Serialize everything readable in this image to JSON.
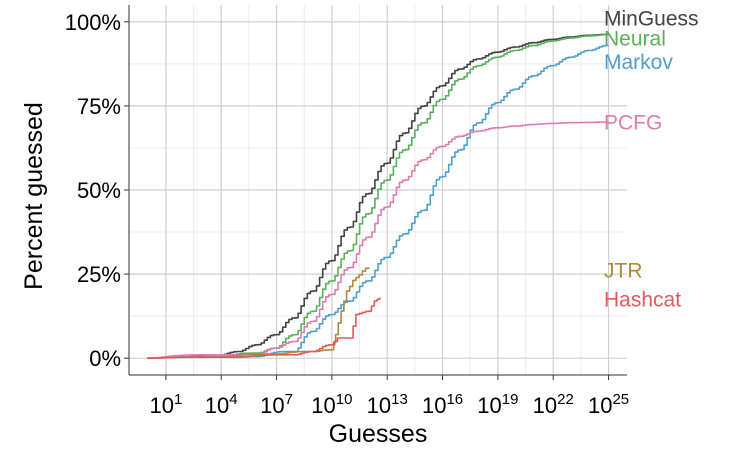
{
  "chart_data": {
    "type": "line",
    "xlabel": "Guesses",
    "ylabel": "Percent guessed",
    "x_scale": "log10",
    "xlim_exponent": [
      -1,
      26
    ],
    "ylim": [
      -5,
      105
    ],
    "grid": true,
    "legend": "direct labels at right end of each line",
    "x_ticks": [
      {
        "exp": 1,
        "base": "10",
        "sup": "1"
      },
      {
        "exp": 4,
        "base": "10",
        "sup": "4"
      },
      {
        "exp": 7,
        "base": "10",
        "sup": "7"
      },
      {
        "exp": 10,
        "base": "10",
        "sup": "10"
      },
      {
        "exp": 13,
        "base": "10",
        "sup": "13"
      },
      {
        "exp": 16,
        "base": "10",
        "sup": "16"
      },
      {
        "exp": 19,
        "base": "10",
        "sup": "19"
      },
      {
        "exp": 22,
        "base": "10",
        "sup": "22"
      },
      {
        "exp": 25,
        "base": "10",
        "sup": "25"
      }
    ],
    "y_ticks": [
      {
        "value": 0,
        "label": "0%"
      },
      {
        "value": 25,
        "label": "25%"
      },
      {
        "value": 50,
        "label": "50%"
      },
      {
        "value": 75,
        "label": "75%"
      },
      {
        "value": 100,
        "label": "100%"
      }
    ],
    "series": [
      {
        "name": "MinGuess",
        "color": "#424242",
        "label_y": 101,
        "points": [
          [
            0,
            0
          ],
          [
            2,
            0.3
          ],
          [
            4,
            1
          ],
          [
            5,
            2
          ],
          [
            6,
            4
          ],
          [
            7,
            7
          ],
          [
            8,
            12
          ],
          [
            9,
            20
          ],
          [
            10,
            29
          ],
          [
            11,
            39
          ],
          [
            12,
            49
          ],
          [
            13,
            58
          ],
          [
            14,
            67
          ],
          [
            15,
            75
          ],
          [
            16,
            81
          ],
          [
            17,
            86
          ],
          [
            18,
            89
          ],
          [
            19,
            91
          ],
          [
            20,
            92.5
          ],
          [
            21,
            93.8
          ],
          [
            22,
            94.8
          ],
          [
            23,
            95.5
          ],
          [
            24,
            96
          ],
          [
            25,
            96.3
          ]
        ]
      },
      {
        "name": "Neural",
        "color": "#5aaf5a",
        "label_y": 95,
        "points": [
          [
            0,
            0
          ],
          [
            4,
            0.3
          ],
          [
            6,
            1.5
          ],
          [
            7,
            3
          ],
          [
            8,
            7
          ],
          [
            9,
            14
          ],
          [
            10,
            23
          ],
          [
            11,
            32
          ],
          [
            12,
            43
          ],
          [
            13,
            53
          ],
          [
            14,
            62
          ],
          [
            15,
            70
          ],
          [
            16,
            77
          ],
          [
            17,
            83
          ],
          [
            18,
            87
          ],
          [
            19,
            89.5
          ],
          [
            20,
            91.5
          ],
          [
            21,
            93
          ],
          [
            22,
            94.3
          ],
          [
            23,
            95.2
          ],
          [
            24,
            95.8
          ],
          [
            25,
            96.2
          ]
        ]
      },
      {
        "name": "Markov",
        "color": "#4f9fcf",
        "label_y": 88,
        "points": [
          [
            0,
            0
          ],
          [
            6,
            0.5
          ],
          [
            8,
            2
          ],
          [
            9,
            8
          ],
          [
            10,
            13
          ],
          [
            11,
            17
          ],
          [
            12,
            23
          ],
          [
            13,
            30
          ],
          [
            14,
            37
          ],
          [
            15,
            44
          ],
          [
            16,
            54
          ],
          [
            17,
            62
          ],
          [
            18,
            70
          ],
          [
            19,
            76
          ],
          [
            20,
            80
          ],
          [
            21,
            84
          ],
          [
            22,
            87
          ],
          [
            23,
            89.5
          ],
          [
            24,
            91.5
          ],
          [
            25,
            93
          ]
        ]
      },
      {
        "name": "PCFG",
        "color": "#e07bb0",
        "label_y": 70,
        "points": [
          [
            0,
            0
          ],
          [
            6,
            1
          ],
          [
            7,
            3
          ],
          [
            8,
            5
          ],
          [
            9,
            11
          ],
          [
            10,
            19
          ],
          [
            11,
            27
          ],
          [
            12,
            36
          ],
          [
            13,
            45
          ],
          [
            14,
            53
          ],
          [
            15,
            59
          ],
          [
            16,
            63
          ],
          [
            17,
            66
          ],
          [
            18,
            67.5
          ],
          [
            19,
            68.5
          ],
          [
            20,
            69
          ],
          [
            21,
            69.5
          ],
          [
            22,
            69.8
          ],
          [
            23,
            70
          ],
          [
            24,
            70.1
          ],
          [
            25,
            70.2
          ]
        ]
      },
      {
        "name": "JTR",
        "color": "#b08a3a",
        "label_y": 26,
        "points": [
          [
            0,
            0
          ],
          [
            4,
            0.3
          ],
          [
            7,
            1.2
          ],
          [
            9,
            2
          ],
          [
            10,
            2.5
          ],
          [
            10.2,
            7
          ],
          [
            10.5,
            14
          ],
          [
            10.8,
            20
          ],
          [
            11.3,
            24
          ],
          [
            12,
            27
          ]
        ]
      },
      {
        "name": "Hashcat",
        "color": "#e05a5a",
        "label_y": 17.5,
        "points": [
          [
            0,
            0
          ],
          [
            5,
            0.3
          ],
          [
            8,
            1
          ],
          [
            9,
            2
          ],
          [
            10,
            4
          ],
          [
            10.3,
            6
          ],
          [
            11,
            6
          ],
          [
            11.3,
            13
          ],
          [
            12,
            14
          ],
          [
            12.3,
            17
          ],
          [
            12.6,
            18
          ]
        ]
      }
    ]
  }
}
